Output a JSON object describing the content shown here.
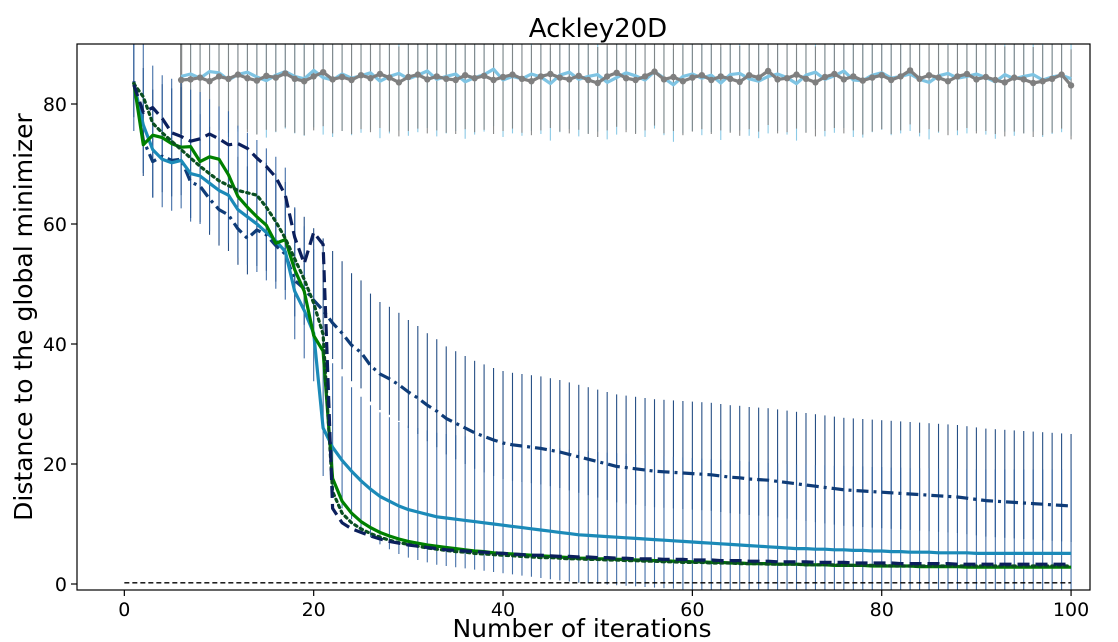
{
  "chart_data": {
    "type": "line",
    "title": "Ackley20D",
    "xlabel": "Number of iterations",
    "ylabel": "Distance to the global minimizer",
    "xlim": [
      -5,
      102
    ],
    "ylim": [
      -1,
      90
    ],
    "xticks": [
      0,
      20,
      40,
      60,
      80,
      100
    ],
    "yticks": [
      0,
      20,
      40,
      60,
      80
    ],
    "grid": false,
    "reference_line": {
      "y": 0.2,
      "style": "dashed",
      "color": "#000000"
    },
    "series": [
      {
        "color": "#7fc4e3",
        "style": "solid",
        "marker": "none",
        "x_start": 6,
        "x_end": 100,
        "values": [
          84.6,
          85.0,
          84.3,
          85.4,
          85.2,
          84.0,
          84.9,
          85.3,
          84.5,
          83.9,
          84.8,
          85.4,
          84.6,
          84.2,
          85.6,
          84.4,
          84.0,
          85.0,
          84.3,
          84.7,
          85.2,
          83.8,
          84.6,
          85.1,
          84.2,
          84.8,
          85.5,
          84.1,
          84.6,
          85.0,
          83.7,
          84.4,
          84.9,
          85.8,
          84.0,
          84.6,
          84.2,
          85.0,
          84.5,
          83.4,
          84.8,
          85.3,
          84.1,
          84.6,
          84.9,
          83.6,
          84.4,
          85.2,
          84.7,
          84.0,
          85.4,
          84.3,
          83.2,
          84.6,
          85.0,
          84.3,
          84.8,
          83.5,
          84.9,
          85.1,
          84.2,
          83.8,
          84.6,
          85.0,
          84.4,
          83.4,
          84.8,
          85.3,
          84.1,
          84.7,
          85.5,
          84.0,
          83.9,
          84.8,
          85.2,
          84.3,
          84.6,
          85.0,
          84.1,
          83.6,
          84.7,
          85.1,
          84.3,
          84.6,
          85.0,
          84.4,
          83.7,
          84.9,
          84.2,
          84.6,
          84.9,
          84.0,
          84.5,
          84.8,
          84.2
        ],
        "err_low": 9.5,
        "err_high": 6.0
      },
      {
        "color": "#7f7f7f",
        "style": "solid",
        "marker": "circle",
        "x_start": 6,
        "x_end": 100,
        "values": [
          84.0,
          84.1,
          84.4,
          83.8,
          84.6,
          84.2,
          84.9,
          84.3,
          83.9,
          84.7,
          84.4,
          85.1,
          84.2,
          83.8,
          84.6,
          85.3,
          84.1,
          84.5,
          84.0,
          84.8,
          84.3,
          85.0,
          84.4,
          83.6,
          84.5,
          84.9,
          84.1,
          84.6,
          84.2,
          84.0,
          84.8,
          84.3,
          84.7,
          84.0,
          84.5,
          84.9,
          84.2,
          83.8,
          84.6,
          85.0,
          84.4,
          84.1,
          84.7,
          84.0,
          83.5,
          84.6,
          85.2,
          84.3,
          84.0,
          84.6,
          85.4,
          84.1,
          84.5,
          83.8,
          84.4,
          84.8,
          84.0,
          84.6,
          84.2,
          83.7,
          84.8,
          84.4,
          85.5,
          84.1,
          84.3,
          84.9,
          84.2,
          83.6,
          84.5,
          85.0,
          84.1,
          84.6,
          83.9,
          84.4,
          84.8,
          84.0,
          84.6,
          85.6,
          84.2,
          84.8,
          84.4,
          83.8,
          84.6,
          85.0,
          84.1,
          84.5,
          84.0,
          83.6,
          84.4,
          84.1,
          83.5,
          83.8,
          84.2,
          84.9,
          83.1
        ],
        "err_low": 9.0,
        "err_high": 6.0,
        "first_err_high": 90
      },
      {
        "color": "#0f3c78",
        "style": "dashdot",
        "marker": "none",
        "x_start": 1,
        "x_end": 100,
        "values": [
          83.8,
          74.0,
          70.4,
          71.3,
          70.6,
          70.8,
          67.0,
          66.3,
          64.2,
          62.4,
          61.5,
          59.2,
          57.6,
          59.0,
          58.2,
          56.4,
          55.0,
          50.6,
          49.2,
          47.3,
          45.6,
          43.5,
          41.8,
          39.8,
          38.6,
          36.4,
          35.0,
          34.2,
          33.2,
          32.0,
          31.0,
          29.8,
          28.8,
          27.6,
          26.8,
          26.0,
          25.2,
          24.6,
          24.0,
          23.5,
          23.2,
          23.0,
          22.8,
          22.6,
          22.3,
          22.0,
          21.6,
          21.2,
          20.8,
          20.4,
          20.0,
          19.6,
          19.4,
          19.2,
          19.0,
          18.8,
          18.7,
          18.6,
          18.5,
          18.4,
          18.3,
          18.2,
          18.0,
          17.8,
          17.7,
          17.5,
          17.4,
          17.3,
          17.1,
          16.9,
          16.7,
          16.5,
          16.3,
          16.1,
          15.9,
          15.7,
          15.6,
          15.5,
          15.4,
          15.3,
          15.2,
          15.1,
          15.0,
          14.9,
          14.8,
          14.7,
          14.6,
          14.5,
          14.3,
          14.1,
          13.9,
          13.8,
          13.7,
          13.6,
          13.5,
          13.4,
          13.3,
          13.2,
          13.1,
          13.0
        ],
        "err_low": 6.0,
        "err_high": 12.0
      },
      {
        "color": "#1b8ab8",
        "style": "solid",
        "marker": "none",
        "x_start": 1,
        "x_end": 100,
        "values": [
          83.5,
          76.5,
          72.4,
          70.8,
          70.2,
          70.6,
          68.4,
          68.0,
          66.8,
          65.6,
          64.8,
          62.4,
          61.2,
          60.0,
          58.6,
          57.2,
          55.4,
          48.8,
          45.6,
          41.8,
          26.0,
          22.8,
          20.6,
          18.8,
          17.2,
          15.8,
          14.6,
          13.8,
          13.0,
          12.4,
          12.0,
          11.6,
          11.2,
          11.0,
          10.8,
          10.6,
          10.4,
          10.2,
          10.0,
          9.8,
          9.6,
          9.4,
          9.2,
          9.0,
          8.8,
          8.6,
          8.4,
          8.2,
          8.1,
          8.0,
          7.9,
          7.8,
          7.7,
          7.6,
          7.5,
          7.4,
          7.3,
          7.2,
          7.1,
          7.0,
          6.9,
          6.8,
          6.7,
          6.6,
          6.5,
          6.4,
          6.3,
          6.2,
          6.1,
          6.0,
          5.9,
          5.9,
          5.8,
          5.8,
          5.7,
          5.7,
          5.6,
          5.6,
          5.5,
          5.5,
          5.4,
          5.4,
          5.3,
          5.3,
          5.3,
          5.2,
          5.2,
          5.2,
          5.2,
          5.1,
          5.1,
          5.1,
          5.1,
          5.1,
          5.1,
          5.1,
          5.1,
          5.1,
          5.1,
          5.1
        ],
        "err_low": 0,
        "err_high": 0
      },
      {
        "color": "#008000",
        "style": "solid",
        "marker": "none",
        "x_start": 1,
        "x_end": 100,
        "values": [
          83.6,
          73.2,
          74.8,
          74.4,
          73.4,
          72.8,
          72.9,
          70.4,
          71.2,
          70.8,
          68.2,
          64.6,
          62.8,
          61.2,
          59.8,
          56.8,
          57.4,
          52.4,
          48.8,
          41.4,
          38.8,
          17.6,
          13.8,
          11.8,
          10.4,
          9.4,
          8.6,
          8.0,
          7.5,
          7.1,
          6.8,
          6.5,
          6.3,
          6.1,
          5.9,
          5.7,
          5.5,
          5.4,
          5.2,
          5.1,
          5.0,
          4.9,
          4.8,
          4.7,
          4.6,
          4.5,
          4.4,
          4.3,
          4.3,
          4.2,
          4.2,
          4.1,
          4.1,
          4.0,
          4.0,
          3.9,
          3.9,
          3.8,
          3.8,
          3.7,
          3.7,
          3.6,
          3.6,
          3.5,
          3.5,
          3.4,
          3.4,
          3.4,
          3.3,
          3.3,
          3.3,
          3.2,
          3.2,
          3.2,
          3.1,
          3.1,
          3.1,
          3.1,
          3.0,
          3.0,
          3.0,
          3.0,
          3.0,
          2.9,
          2.9,
          2.9,
          2.9,
          2.9,
          2.8,
          2.8,
          2.8,
          2.8,
          2.8,
          2.8,
          2.8,
          2.8,
          2.8,
          2.8,
          2.8,
          2.8
        ],
        "err_low": 0,
        "err_high": 0
      },
      {
        "color": "#0a4f20",
        "style": "dotted",
        "marker": "none",
        "x_start": 1,
        "x_end": 100,
        "values": [
          83.4,
          81.2,
          76.8,
          75.2,
          73.8,
          72.4,
          71.0,
          69.6,
          68.4,
          67.2,
          66.4,
          65.6,
          65.2,
          64.8,
          62.8,
          60.4,
          57.6,
          54.2,
          50.8,
          46.8,
          41.6,
          15.4,
          11.8,
          10.2,
          9.2,
          8.4,
          7.8,
          7.3,
          6.9,
          6.6,
          6.3,
          6.0,
          5.8,
          5.6,
          5.4,
          5.3,
          5.1,
          5.0,
          4.9,
          4.8,
          4.7,
          4.6,
          4.5,
          4.4,
          4.4,
          4.3,
          4.2,
          4.2,
          4.1,
          4.1,
          4.0,
          4.0,
          3.9,
          3.9,
          3.8,
          3.8,
          3.7,
          3.7,
          3.6,
          3.6,
          3.6,
          3.5,
          3.5,
          3.5,
          3.4,
          3.4,
          3.4,
          3.3,
          3.3,
          3.3,
          3.3,
          3.2,
          3.2,
          3.2,
          3.2,
          3.1,
          3.1,
          3.1,
          3.1,
          3.1,
          3.0,
          3.0,
          3.0,
          3.0,
          3.0,
          3.0,
          3.0,
          3.0,
          3.0,
          3.0,
          3.0,
          3.0,
          3.0,
          3.0,
          3.0,
          3.0,
          3.0,
          3.0,
          3.0,
          3.0
        ],
        "err_low": 0,
        "err_high": 0
      },
      {
        "color": "#0b1f5c",
        "style": "dashed",
        "marker": "none",
        "x_start": 1,
        "x_end": 100,
        "values": [
          83.2,
          78.6,
          79.4,
          77.6,
          75.2,
          74.6,
          73.8,
          74.2,
          75.0,
          74.2,
          73.2,
          73.4,
          72.6,
          71.0,
          69.6,
          67.8,
          64.8,
          57.8,
          53.4,
          58.6,
          56.6,
          12.6,
          10.2,
          9.2,
          8.6,
          8.0,
          7.5,
          7.1,
          6.8,
          6.5,
          6.3,
          6.1,
          5.9,
          5.7,
          5.6,
          5.5,
          5.4,
          5.3,
          5.2,
          5.1,
          5.0,
          4.9,
          4.8,
          4.8,
          4.7,
          4.6,
          4.6,
          4.5,
          4.5,
          4.4,
          4.4,
          4.3,
          4.3,
          4.2,
          4.2,
          4.2,
          4.1,
          4.1,
          4.1,
          4.0,
          4.0,
          4.0,
          3.9,
          3.9,
          3.9,
          3.8,
          3.8,
          3.8,
          3.7,
          3.7,
          3.7,
          3.7,
          3.6,
          3.6,
          3.6,
          3.6,
          3.5,
          3.5,
          3.5,
          3.5,
          3.5,
          3.4,
          3.4,
          3.4,
          3.4,
          3.4,
          3.4,
          3.3,
          3.3,
          3.3,
          3.3,
          3.3,
          3.3,
          3.3,
          3.3,
          3.3,
          3.3,
          3.3,
          3.3,
          3.3
        ],
        "err_low": 0,
        "err_high": 0
      },
      {
        "color": "#2e5f9e",
        "style": "none",
        "marker": "none",
        "x_start": 1,
        "x_end": 100,
        "band_of": 3,
        "err_low": 8.0,
        "err_high": 14.0
      }
    ]
  }
}
